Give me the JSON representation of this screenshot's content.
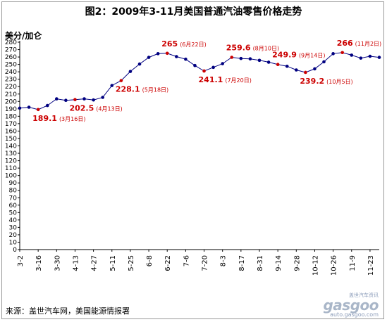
{
  "chart_data": {
    "type": "line",
    "title": "图2：2009年3-11月美国普通汽油零售价格走势",
    "ylabel": "美分/加仑",
    "ylim": [
      0,
      280
    ],
    "yticks": [
      0,
      10,
      20,
      30,
      40,
      50,
      60,
      70,
      80,
      90,
      100,
      110,
      120,
      130,
      140,
      150,
      160,
      170,
      180,
      190,
      200,
      210,
      220,
      230,
      240,
      250,
      260,
      270,
      280
    ],
    "xticks": [
      "3-2",
      "3-16",
      "3-30",
      "4-13",
      "4-27",
      "5-11",
      "5-25",
      "6-8",
      "6-22",
      "7-6",
      "7-20",
      "8-3",
      "8-17",
      "8-31",
      "9-14",
      "9-28",
      "10-12",
      "10-26",
      "11-9",
      "11-23"
    ],
    "series": [
      {
        "values": [
          191.0,
          192.2,
          189.1,
          194.5,
          203.5,
          201.5,
          202.5,
          203.5,
          202.0,
          205.5,
          221.5,
          228.1,
          240.5,
          250.5,
          259.5,
          264.5,
          265.0,
          260.5,
          257.0,
          248.5,
          241.1,
          246.0,
          251.0,
          259.6,
          258.0,
          257.5,
          255.5,
          253.0,
          249.9,
          247.5,
          242.5,
          239.2,
          244.0,
          253.5,
          264.5,
          266.0,
          262.5,
          258.5,
          261.0,
          259.5
        ],
        "color": "#000080"
      }
    ],
    "annotations": [
      {
        "index": 2,
        "value": "189.1",
        "date": "(3月16日)"
      },
      {
        "index": 6,
        "value": "202.5",
        "date": "(4月13日)"
      },
      {
        "index": 11,
        "value": "228.1",
        "date": "(5月18日)"
      },
      {
        "index": 16,
        "value": "265",
        "date": "(6月22日)"
      },
      {
        "index": 20,
        "value": "241.1",
        "date": "(7月20日)"
      },
      {
        "index": 23,
        "value": "259.6",
        "date": "(8月10日)"
      },
      {
        "index": 28,
        "value": "249.9",
        "date": "(9月14日)"
      },
      {
        "index": 31,
        "value": "239.2",
        "date": "(10月5日)"
      },
      {
        "index": 35,
        "value": "266",
        "date": "(11月2日)"
      }
    ],
    "marker_color": "#000080",
    "highlight_color": "#cc0000",
    "grid": false
  },
  "source": "来源：盖世汽车网，美国能源情报署",
  "watermark": {
    "cn": "盖世汽车资讯",
    "logo": "gasgoo",
    "url": "auto.gasgoo.com"
  }
}
